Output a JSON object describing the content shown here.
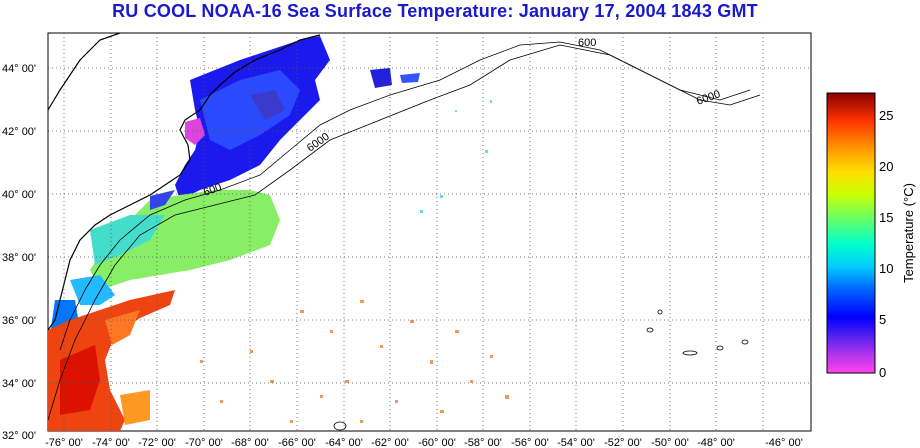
{
  "title": "RU COOL  NOAA-16  Sea Surface Temperature:  January 17, 2004 1843 GMT",
  "lat_labels": [
    "44° 00'",
    "42° 00'",
    "40° 00'",
    "38° 00'",
    "36° 00'",
    "34° 00'",
    "32° 00'"
  ],
  "lon_labels": [
    "-76° 00'",
    "-74° 00'",
    "-72° 00'",
    "-70° 00'",
    "-68° 00'",
    "-66° 00'",
    "-64° 00'",
    "-62° 00'",
    "-60° 00'",
    "-58° 00'",
    "-56° 00'",
    "-54° 00'",
    "-52° 00'",
    "-50° 00'",
    "-48° 00'",
    "-46° 00'"
  ],
  "colorbar": {
    "label": "Temperature (°C)",
    "ticks": [
      "25",
      "20",
      "15",
      "10",
      "5",
      "0"
    ],
    "range": [
      0,
      27
    ]
  },
  "isobaths": [
    "600",
    "6000"
  ],
  "colors": {
    "title": "#1a1acc",
    "land_outline": "#000000",
    "grid": "#555555"
  }
}
